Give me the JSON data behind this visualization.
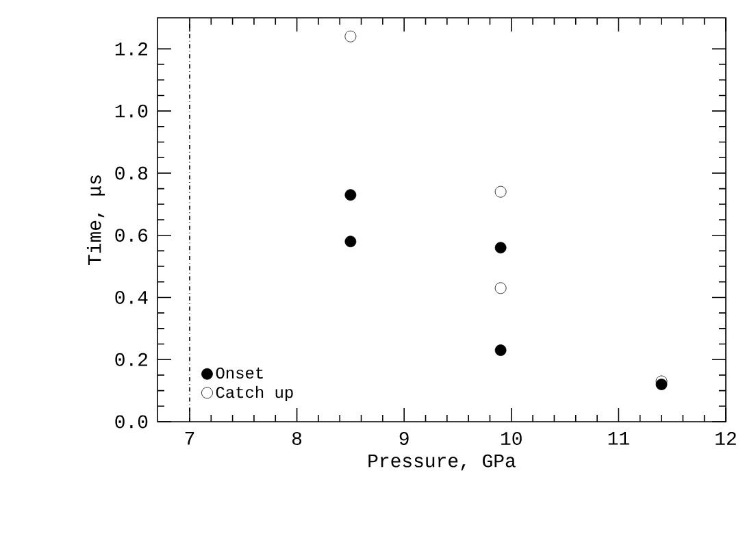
{
  "chart_data": {
    "type": "scatter",
    "xlabel": "Pressure, GPa",
    "ylabel": "Time, μs",
    "xlim": [
      6.7,
      12
    ],
    "ylim": [
      0,
      1.3
    ],
    "xticks": [
      7,
      8,
      9,
      10,
      11,
      12
    ],
    "yticks": [
      {
        "value": 0,
        "label": "0.0"
      },
      0.2,
      0.4,
      0.6,
      0.8,
      {
        "value": 1,
        "label": "1.0"
      },
      {
        "value": 1.2,
        "label": "1.2"
      }
    ],
    "marker": "circle",
    "legend": "bottom left",
    "grid": false,
    "ref_lines": [
      {
        "axis": "x",
        "value": 7,
        "line_style": "dashdotted",
        "color": "#000000"
      }
    ],
    "series": [
      {
        "name": "Onset",
        "color": "#000000",
        "x": [
          8.5,
          8.5,
          9.9,
          9.9,
          11.4
        ],
        "values": [
          0.73,
          0.58,
          0.56,
          0.23,
          0.12
        ]
      },
      {
        "name": "Catch up",
        "color": "#000000",
        "x": [
          8.5,
          9.9,
          9.9,
          11.4
        ],
        "values": [
          1.24,
          0.74,
          0.43,
          0.13
        ]
      }
    ]
  }
}
